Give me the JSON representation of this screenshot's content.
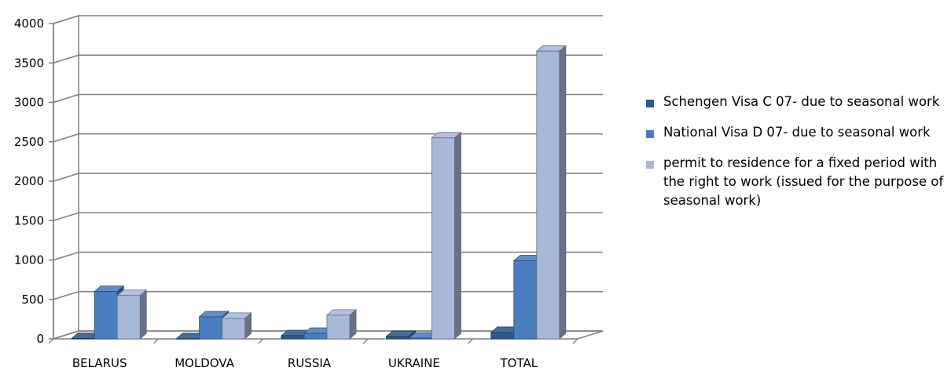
{
  "chart_data": {
    "type": "bar",
    "categories": [
      "BELARUS",
      "MOLDOVA",
      "RUSSIA",
      "UKRAINE",
      "TOTAL"
    ],
    "series": [
      {
        "name": "Schengen Visa C 07- due to seasonal work",
        "color": "#2e5a8c",
        "values": [
          5,
          2,
          40,
          30,
          80
        ]
      },
      {
        "name": "National Visa D 07- due to seasonal work",
        "color": "#4a7dbd",
        "values": [
          600,
          280,
          70,
          10,
          990
        ]
      },
      {
        "name": "permit to residence for a fixed period with the right to work (issued for the purpose of seasonal work)",
        "color": "#a8b8d8",
        "values": [
          550,
          260,
          300,
          2550,
          3650
        ]
      }
    ],
    "ylim": [
      0,
      4000
    ],
    "yticks": [
      "0",
      "500",
      "1000",
      "1500",
      "2000",
      "2500",
      "3000",
      "3500",
      "4000"
    ],
    "grid": true,
    "legend_position": "right",
    "style": "3d-clustered-column"
  }
}
